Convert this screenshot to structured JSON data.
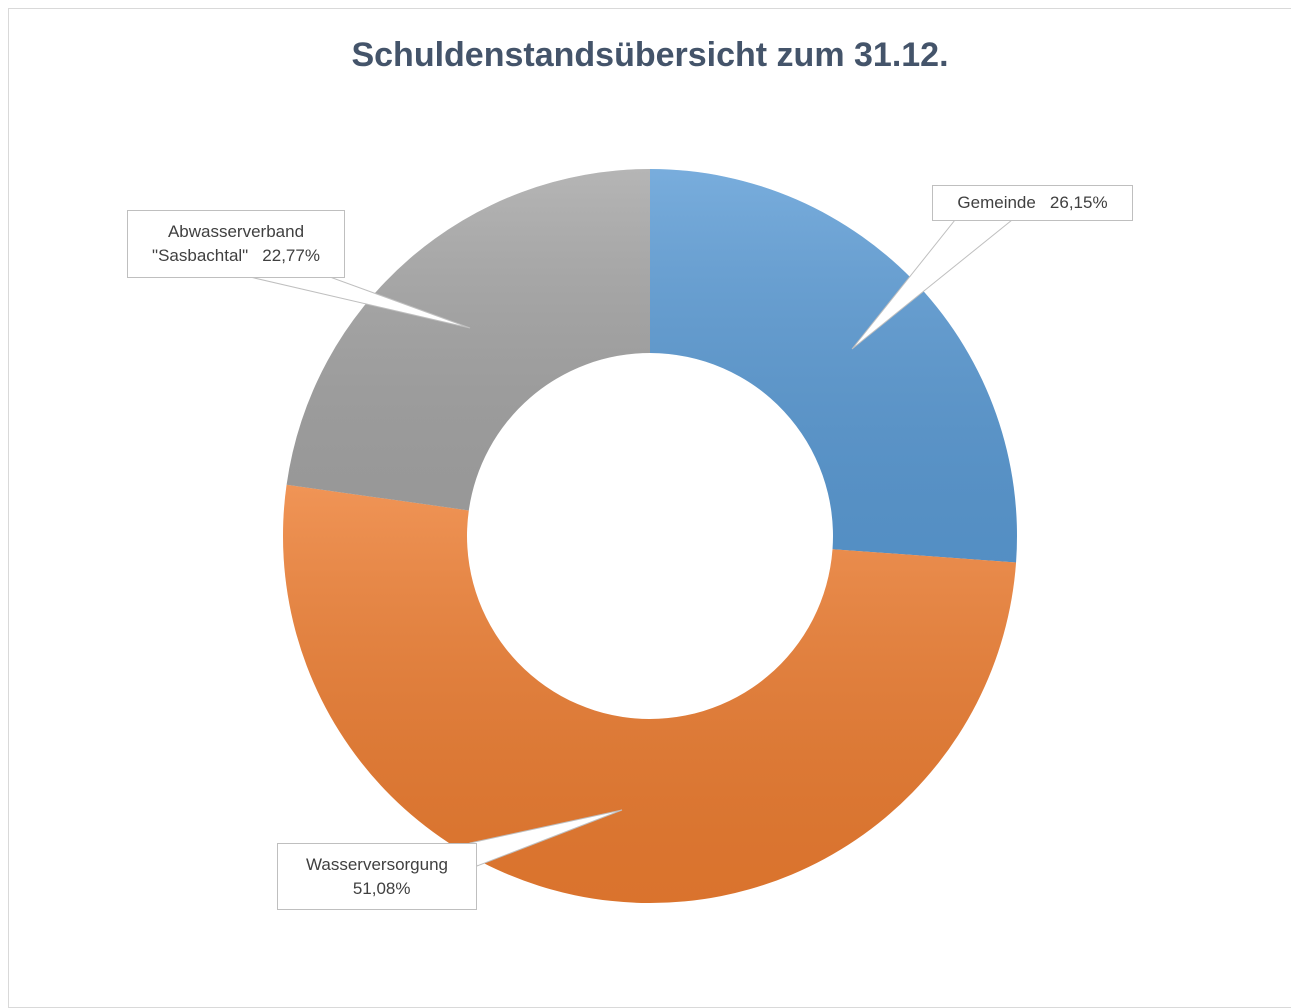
{
  "chart_data": {
    "type": "pie",
    "title": "Schuldenstandsübersicht zum 31.12.",
    "categories": [
      "Gemeinde",
      "Wasserversorgung",
      "Abwasserverband \"Sasbachtal\""
    ],
    "values": [
      26.15,
      51.08,
      22.77
    ],
    "value_labels": [
      "26,15%",
      "51,08%",
      "22,77%"
    ],
    "colors": [
      "#5b9bd5",
      "#ed7d31",
      "#a5a5a5"
    ]
  }
}
